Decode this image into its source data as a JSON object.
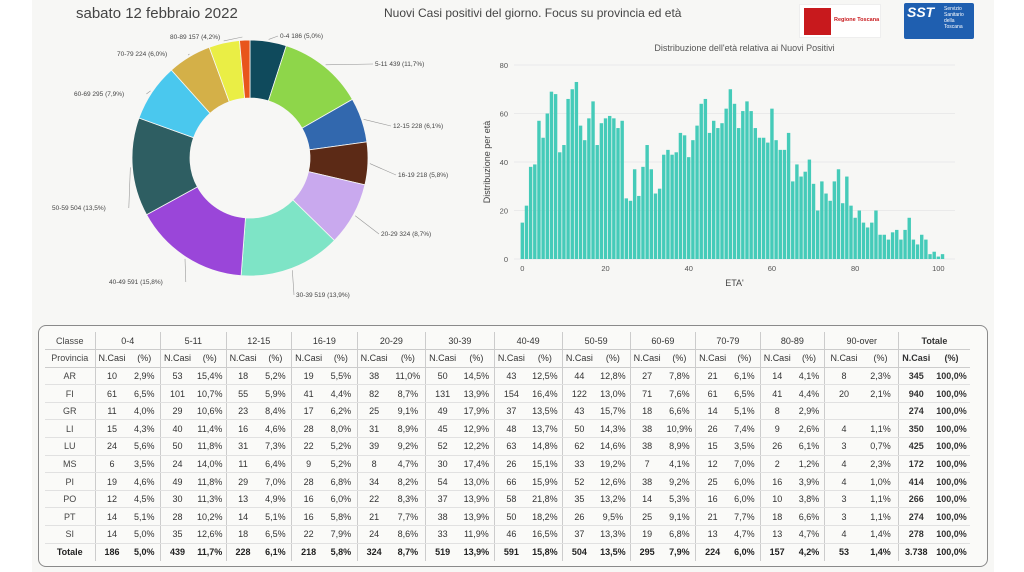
{
  "header": {
    "date": "sabato 12 febbraio 2022",
    "title": "Nuovi Casi positivi del giorno. Focus su provincia ed età",
    "logo_regione": "Regione Toscana",
    "logo_sst": "SST",
    "logo_sst_text": "Servizio Sanitario della Toscana"
  },
  "chart_data": [
    {
      "type": "pie",
      "donut": true,
      "slices": [
        {
          "label": "0-4",
          "value": 186,
          "pct": "5,0%",
          "color": "#0f4a5c",
          "text": "0-4 186 (5,0%)"
        },
        {
          "label": "5-11",
          "value": 439,
          "pct": "11,7%",
          "color": "#8ed64a",
          "text": "5-11 439 (11,7%)"
        },
        {
          "label": "12-15",
          "value": 228,
          "pct": "6,1%",
          "color": "#3268ae",
          "text": "12-15 228 (6,1%)"
        },
        {
          "label": "16-19",
          "value": 218,
          "pct": "5,8%",
          "color": "#5c2a16",
          "text": "16-19 218 (5,8%)"
        },
        {
          "label": "20-29",
          "value": 324,
          "pct": "8,7%",
          "color": "#c9a9ee",
          "text": "20-29 324 (8,7%)"
        },
        {
          "label": "30-39",
          "value": 519,
          "pct": "13,9%",
          "color": "#7ee4c6",
          "text": "30-39 519 (13,9%)"
        },
        {
          "label": "40-49",
          "value": 591,
          "pct": "15,8%",
          "color": "#9a46d9",
          "text": "40-49 591 (15,8%)"
        },
        {
          "label": "50-59",
          "value": 504,
          "pct": "13,5%",
          "color": "#2e5e62",
          "text": "50-59 504 (13,5%)"
        },
        {
          "label": "60-69",
          "value": 295,
          "pct": "7,9%",
          "color": "#4ac8ee",
          "text": "60-69 295 (7,9%)"
        },
        {
          "label": "70-79",
          "value": 224,
          "pct": "6,0%",
          "color": "#d4b048",
          "text": "70-79 224 (6,0%)"
        },
        {
          "label": "80-89",
          "value": 157,
          "pct": "4,2%",
          "color": "#eaee45",
          "text": "80-89 157 (4,2%)"
        },
        {
          "label": "90-over",
          "value": 53,
          "pct": "1,4%",
          "color": "#e8551c",
          "text": ""
        }
      ]
    },
    {
      "type": "bar",
      "title": "Distribuzione dell'età relativa ai Nuovi Positivi",
      "xlabel": "ETA'",
      "ylabel": "Distribuzione per età",
      "xlim": [
        -2,
        104
      ],
      "ylim": [
        0,
        80
      ],
      "xticks": [
        0,
        20,
        40,
        60,
        80,
        100
      ],
      "yticks": [
        0,
        20,
        40,
        60,
        80
      ],
      "color": "#45cbb9",
      "x": [
        0,
        1,
        2,
        3,
        4,
        5,
        6,
        7,
        8,
        9,
        10,
        11,
        12,
        13,
        14,
        15,
        16,
        17,
        18,
        19,
        20,
        21,
        22,
        23,
        24,
        25,
        26,
        27,
        28,
        29,
        30,
        31,
        32,
        33,
        34,
        35,
        36,
        37,
        38,
        39,
        40,
        41,
        42,
        43,
        44,
        45,
        46,
        47,
        48,
        49,
        50,
        51,
        52,
        53,
        54,
        55,
        56,
        57,
        58,
        59,
        60,
        61,
        62,
        63,
        64,
        65,
        66,
        67,
        68,
        69,
        70,
        71,
        72,
        73,
        74,
        75,
        76,
        77,
        78,
        79,
        80,
        81,
        82,
        83,
        84,
        85,
        86,
        87,
        88,
        89,
        90,
        91,
        92,
        93,
        94,
        95,
        96,
        97,
        98,
        99,
        100,
        101
      ],
      "values": [
        15,
        22,
        38,
        39,
        57,
        50,
        60,
        69,
        68,
        44,
        47,
        66,
        70,
        73,
        55,
        49,
        58,
        65,
        47,
        56,
        58,
        59,
        58,
        54,
        57,
        25,
        24,
        37,
        26,
        38,
        47,
        37,
        27,
        29,
        43,
        45,
        43,
        44,
        52,
        51,
        42,
        49,
        55,
        64,
        66,
        52,
        57,
        54,
        56,
        62,
        70,
        64,
        54,
        61,
        65,
        61,
        54,
        50,
        50,
        48,
        62,
        49,
        45,
        45,
        52,
        32,
        39,
        34,
        36,
        41,
        31,
        20,
        32,
        27,
        24,
        32,
        37,
        23,
        34,
        22,
        17,
        20,
        15,
        13,
        15,
        20,
        10,
        10,
        8,
        11,
        12,
        8,
        12,
        17,
        8,
        6,
        10,
        8,
        2,
        3,
        1,
        2
      ]
    }
  ],
  "table": {
    "corner_top": "Classe",
    "corner_bottom": "Provincia",
    "groups": [
      "0-4",
      "5-11",
      "12-15",
      "16-19",
      "20-29",
      "30-39",
      "40-49",
      "50-59",
      "60-69",
      "70-79",
      "80-89",
      "90-over",
      "Totale"
    ],
    "sub_ncasi": "N.Casi",
    "sub_pct": "(%)",
    "rows": [
      {
        "prov": "AR",
        "cells": [
          "10",
          "2,9%",
          "53",
          "15,4%",
          "18",
          "5,2%",
          "19",
          "5,5%",
          "38",
          "11,0%",
          "50",
          "14,5%",
          "43",
          "12,5%",
          "44",
          "12,8%",
          "27",
          "7,8%",
          "21",
          "6,1%",
          "14",
          "4,1%",
          "8",
          "2,3%",
          "345",
          "100,0%"
        ]
      },
      {
        "prov": "FI",
        "cells": [
          "61",
          "6,5%",
          "101",
          "10,7%",
          "55",
          "5,9%",
          "41",
          "4,4%",
          "82",
          "8,7%",
          "131",
          "13,9%",
          "154",
          "16,4%",
          "122",
          "13,0%",
          "71",
          "7,6%",
          "61",
          "6,5%",
          "41",
          "4,4%",
          "20",
          "2,1%",
          "940",
          "100,0%"
        ]
      },
      {
        "prov": "GR",
        "cells": [
          "11",
          "4,0%",
          "29",
          "10,6%",
          "23",
          "8,4%",
          "17",
          "6,2%",
          "25",
          "9,1%",
          "49",
          "17,9%",
          "37",
          "13,5%",
          "43",
          "15,7%",
          "18",
          "6,6%",
          "14",
          "5,1%",
          "8",
          "2,9%",
          "",
          "",
          "274",
          "100,0%"
        ]
      },
      {
        "prov": "LI",
        "cells": [
          "15",
          "4,3%",
          "40",
          "11,4%",
          "16",
          "4,6%",
          "28",
          "8,0%",
          "31",
          "8,9%",
          "45",
          "12,9%",
          "48",
          "13,7%",
          "50",
          "14,3%",
          "38",
          "10,9%",
          "26",
          "7,4%",
          "9",
          "2,6%",
          "4",
          "1,1%",
          "350",
          "100,0%"
        ]
      },
      {
        "prov": "LU",
        "cells": [
          "24",
          "5,6%",
          "50",
          "11,8%",
          "31",
          "7,3%",
          "22",
          "5,2%",
          "39",
          "9,2%",
          "52",
          "12,2%",
          "63",
          "14,8%",
          "62",
          "14,6%",
          "38",
          "8,9%",
          "15",
          "3,5%",
          "26",
          "6,1%",
          "3",
          "0,7%",
          "425",
          "100,0%"
        ]
      },
      {
        "prov": "MS",
        "cells": [
          "6",
          "3,5%",
          "24",
          "14,0%",
          "11",
          "6,4%",
          "9",
          "5,2%",
          "8",
          "4,7%",
          "30",
          "17,4%",
          "26",
          "15,1%",
          "33",
          "19,2%",
          "7",
          "4,1%",
          "12",
          "7,0%",
          "2",
          "1,2%",
          "4",
          "2,3%",
          "172",
          "100,0%"
        ]
      },
      {
        "prov": "PI",
        "cells": [
          "19",
          "4,6%",
          "49",
          "11,8%",
          "29",
          "7,0%",
          "28",
          "6,8%",
          "34",
          "8,2%",
          "54",
          "13,0%",
          "66",
          "15,9%",
          "52",
          "12,6%",
          "38",
          "9,2%",
          "25",
          "6,0%",
          "16",
          "3,9%",
          "4",
          "1,0%",
          "414",
          "100,0%"
        ]
      },
      {
        "prov": "PO",
        "cells": [
          "12",
          "4,5%",
          "30",
          "11,3%",
          "13",
          "4,9%",
          "16",
          "6,0%",
          "22",
          "8,3%",
          "37",
          "13,9%",
          "58",
          "21,8%",
          "35",
          "13,2%",
          "14",
          "5,3%",
          "16",
          "6,0%",
          "10",
          "3,8%",
          "3",
          "1,1%",
          "266",
          "100,0%"
        ]
      },
      {
        "prov": "PT",
        "cells": [
          "14",
          "5,1%",
          "28",
          "10,2%",
          "14",
          "5,1%",
          "16",
          "5,8%",
          "21",
          "7,7%",
          "38",
          "13,9%",
          "50",
          "18,2%",
          "26",
          "9,5%",
          "25",
          "9,1%",
          "21",
          "7,7%",
          "18",
          "6,6%",
          "3",
          "1,1%",
          "274",
          "100,0%"
        ]
      },
      {
        "prov": "SI",
        "cells": [
          "14",
          "5,0%",
          "35",
          "12,6%",
          "18",
          "6,5%",
          "22",
          "7,9%",
          "24",
          "8,6%",
          "33",
          "11,9%",
          "46",
          "16,5%",
          "37",
          "13,3%",
          "19",
          "6,8%",
          "13",
          "4,7%",
          "13",
          "4,7%",
          "4",
          "1,4%",
          "278",
          "100,0%"
        ]
      }
    ],
    "total": {
      "prov": "Totale",
      "cells": [
        "186",
        "5,0%",
        "439",
        "11,7%",
        "228",
        "6,1%",
        "218",
        "5,8%",
        "324",
        "8,7%",
        "519",
        "13,9%",
        "591",
        "15,8%",
        "504",
        "13,5%",
        "295",
        "7,9%",
        "224",
        "6,0%",
        "157",
        "4,2%",
        "53",
        "1,4%",
        "3.738",
        "100,0%"
      ]
    }
  }
}
